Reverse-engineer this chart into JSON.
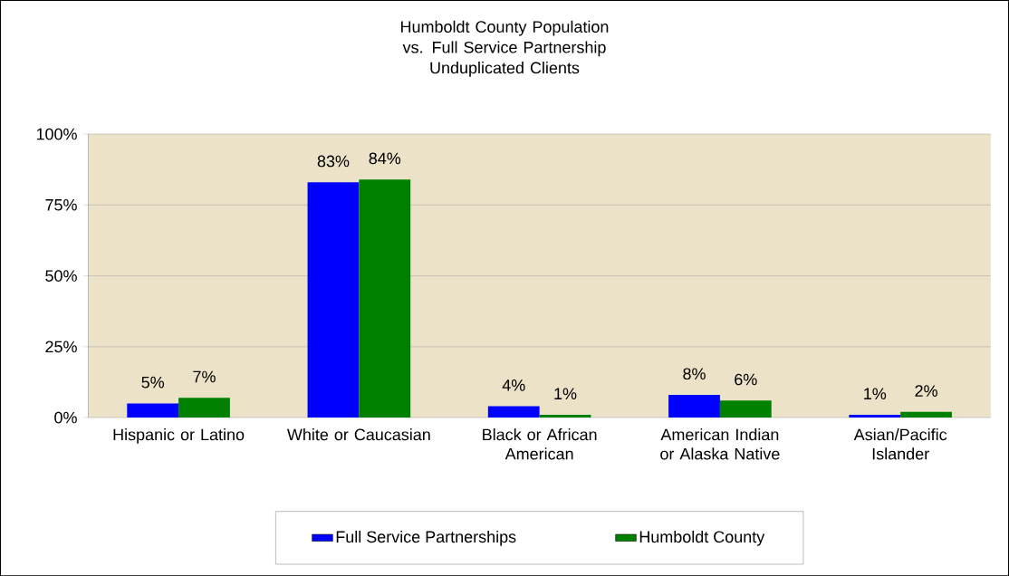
{
  "chart_data": {
    "type": "bar",
    "title": "Humboldt County Population vs. Full Service Partnership Unduplicated Clients",
    "categories": [
      "Hispanic or Latino",
      "White or Caucasian",
      "Black or African American",
      "American Indian or Alaska Native",
      "Asian/Pacific Islander"
    ],
    "series": [
      {
        "name": "Full Service Partnerships",
        "color": "#0000ff",
        "values": [
          5,
          83,
          4,
          8,
          1
        ],
        "value_labels": [
          "5%",
          "83%",
          "4%",
          "8%",
          "1%"
        ]
      },
      {
        "name": "Humboldt County",
        "color": "#008000",
        "values": [
          7,
          84,
          1,
          6,
          2
        ],
        "value_labels": [
          "7%",
          "84%",
          "1%",
          "6%",
          "2%"
        ]
      }
    ],
    "ylim": [
      0,
      100
    ],
    "yticks": [
      {
        "value": 0,
        "label": "0%"
      },
      {
        "value": 25,
        "label": "25%"
      },
      {
        "value": 50,
        "label": "50%"
      },
      {
        "value": 75,
        "label": "75%"
      },
      {
        "value": 100,
        "label": "100%"
      }
    ],
    "grid": "y",
    "legend": "bottom"
  }
}
